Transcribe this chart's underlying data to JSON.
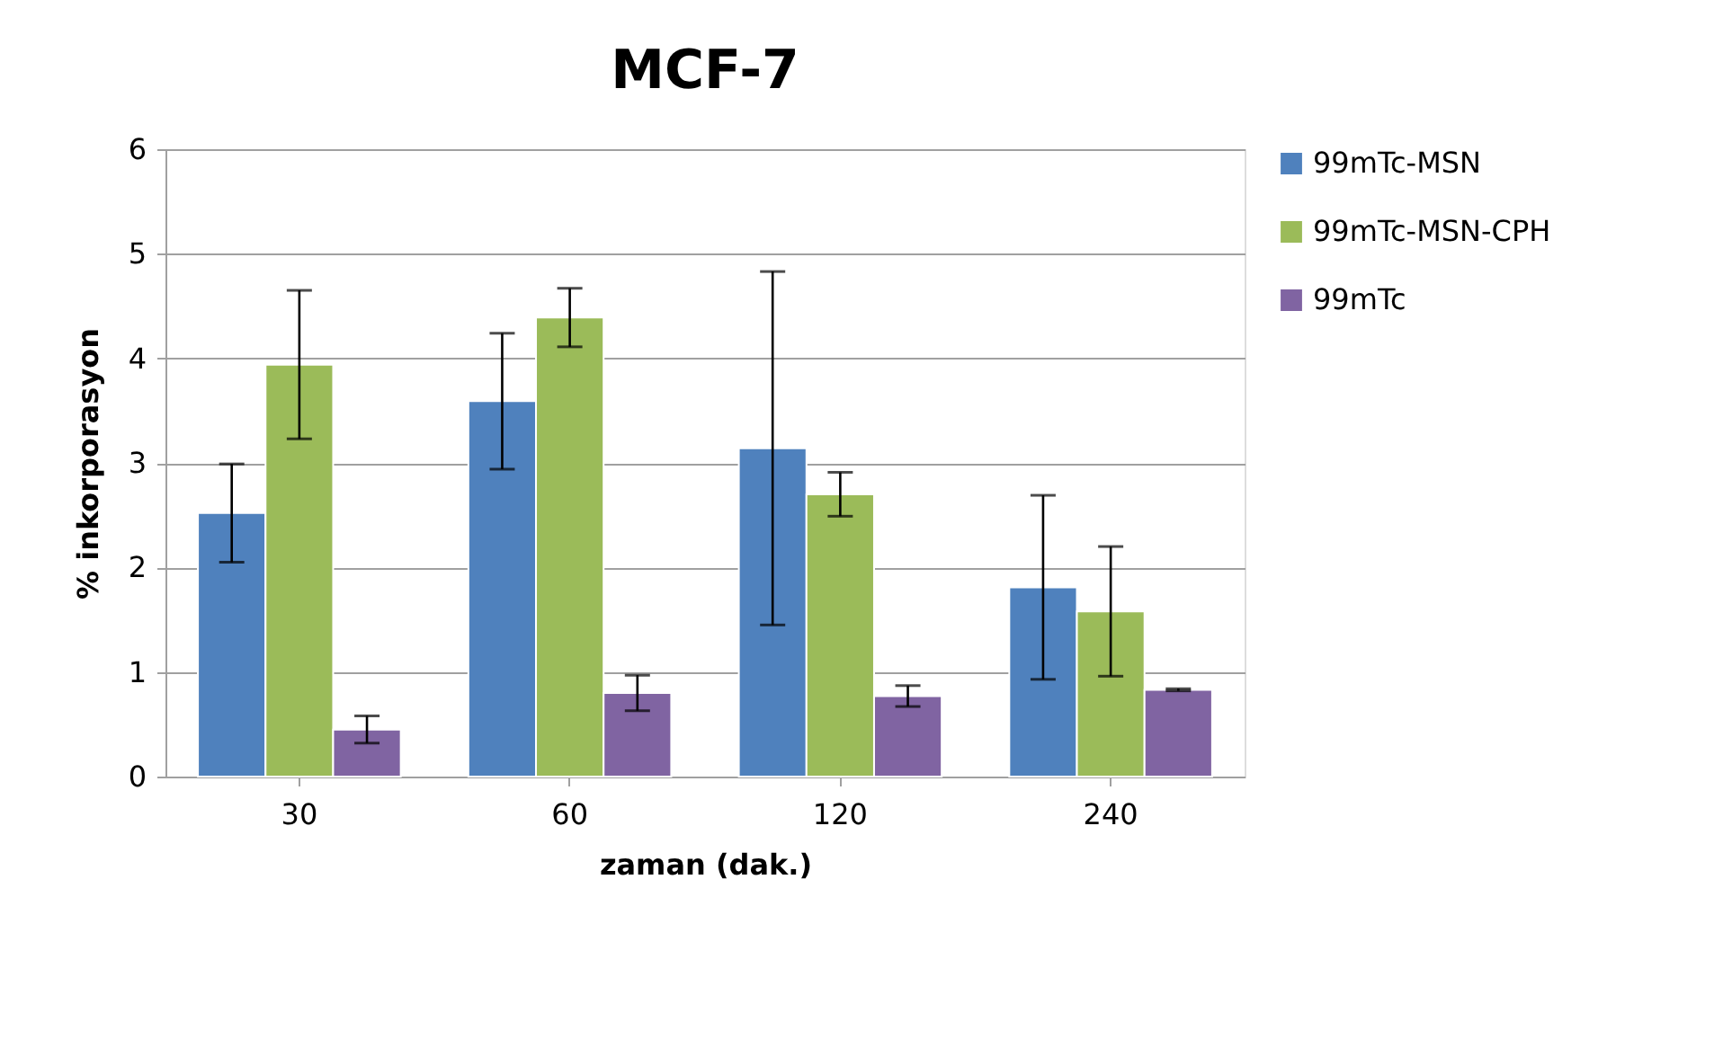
{
  "chart_data": {
    "type": "bar",
    "title": "MCF-7",
    "xlabel": "zaman (dak.)",
    "ylabel": "% inkorporasyon",
    "categories": [
      "30",
      "60",
      "120",
      "240"
    ],
    "series": [
      {
        "name": "99mTc-MSN",
        "color": "#4f81bd",
        "values": [
          2.52,
          3.59,
          3.14,
          1.81
        ],
        "errors": [
          0.47,
          0.65,
          1.69,
          0.88
        ]
      },
      {
        "name": "99mTc-MSN-CPH",
        "color": "#9bbb59",
        "values": [
          3.94,
          4.39,
          2.7,
          1.58
        ],
        "errors": [
          0.71,
          0.28,
          0.21,
          0.62
        ]
      },
      {
        "name": "99mTc",
        "color": "#8064a2",
        "values": [
          0.45,
          0.8,
          0.77,
          0.83
        ],
        "errors": [
          0.13,
          0.17,
          0.1,
          0.01
        ]
      }
    ],
    "ylim": [
      0,
      6
    ],
    "yticks": [
      0,
      1,
      2,
      3,
      4,
      5,
      6
    ],
    "grid": "y",
    "legend": "right"
  }
}
